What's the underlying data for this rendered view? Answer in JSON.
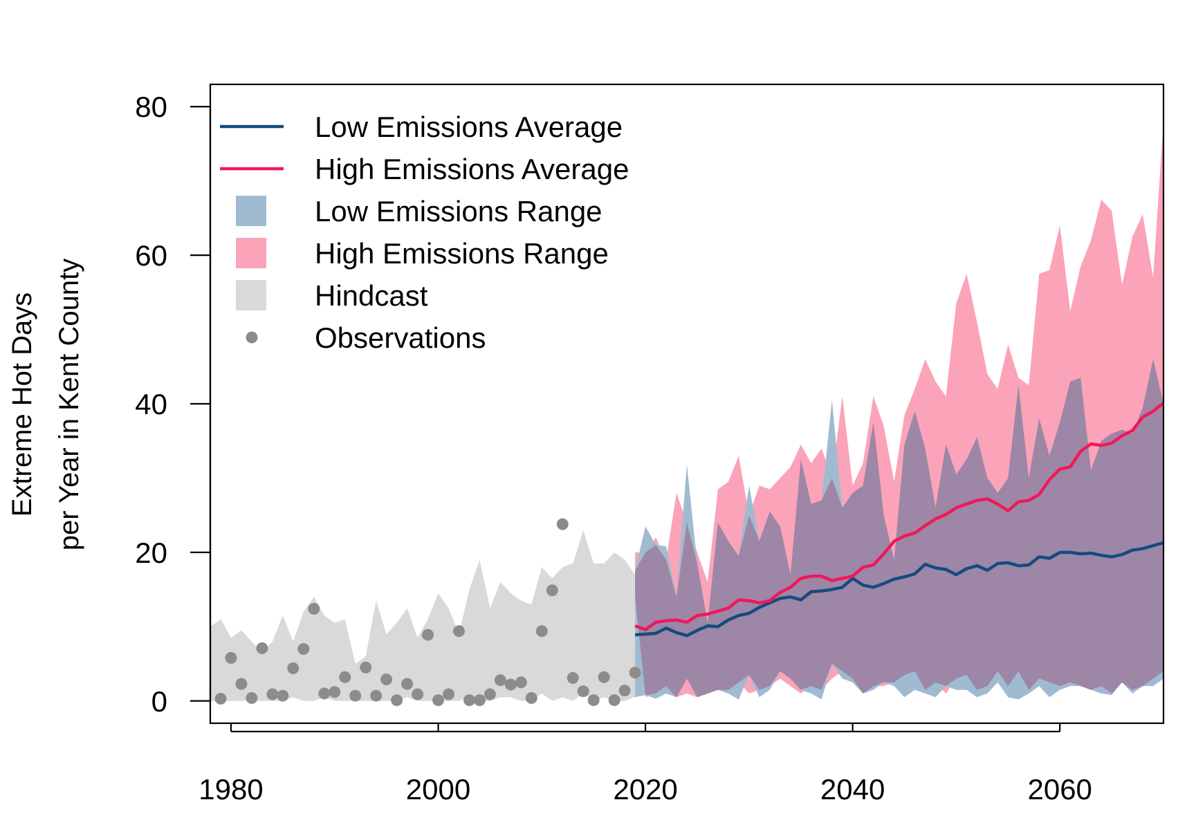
{
  "chart_data": {
    "type": "line",
    "ylabel_line1": "Extreme Hot Days",
    "ylabel_line2": "per Year in Kent County",
    "xlim": [
      1978,
      2070
    ],
    "ylim": [
      -3,
      83
    ],
    "x_ticks": [
      1980,
      2000,
      2020,
      2040,
      2060
    ],
    "x_tick_labels": [
      "1980",
      "2000",
      "2020",
      "2040",
      "2060"
    ],
    "y_ticks": [
      0,
      20,
      40,
      60,
      80
    ],
    "y_tick_labels": [
      "0",
      "20",
      "40",
      "60",
      "80"
    ],
    "legend": {
      "position": "top-left",
      "entries": [
        {
          "label": "Low Emissions Average",
          "kind": "line",
          "color": "#154b7e"
        },
        {
          "label": "High Emissions Average",
          "kind": "line",
          "color": "#f0185a"
        },
        {
          "label": "Low Emissions Range",
          "kind": "box",
          "color": "#a0bbd1"
        },
        {
          "label": "High Emissions Range",
          "kind": "box",
          "color": "#fba3b8"
        },
        {
          "label": "Hindcast",
          "kind": "box",
          "color": "#d9d9d9"
        },
        {
          "label": "Observations",
          "kind": "point",
          "color": "#8c8c8c"
        }
      ]
    },
    "colors": {
      "low_line": "#154b7e",
      "high_line": "#f0185a",
      "low_range": "#a0bbd1",
      "high_range": "#fba3b8",
      "overlap": "#9d86a6",
      "hindcast": "#d9d9d9",
      "observations": "#8c8c8c"
    },
    "hindcast": {
      "x": [
        1978,
        1979,
        1980,
        1981,
        1982,
        1983,
        1984,
        1985,
        1986,
        1987,
        1988,
        1989,
        1990,
        1991,
        1992,
        1993,
        1994,
        1995,
        1996,
        1997,
        1998,
        1999,
        2000,
        2001,
        2002,
        2003,
        2004,
        2005,
        2006,
        2007,
        2008,
        2009,
        2010,
        2011,
        2012,
        2013,
        2014,
        2015,
        2016,
        2017,
        2018,
        2019
      ],
      "upper": [
        10,
        11,
        8.5,
        9.5,
        8,
        6.5,
        8,
        11.5,
        8,
        12,
        14,
        11.5,
        10.5,
        11,
        5,
        6,
        13.5,
        9,
        10.5,
        12.5,
        8.5,
        11,
        14.5,
        12.5,
        9,
        15,
        19,
        12.5,
        16,
        14.5,
        13.5,
        13,
        18,
        16.5,
        18,
        18.5,
        23,
        18.5,
        18.5,
        20,
        19,
        17
      ],
      "lower": [
        0,
        0,
        0,
        0,
        0,
        0,
        0,
        0,
        0.5,
        0,
        0,
        0.5,
        0,
        0,
        0,
        0,
        0,
        0,
        0,
        0.5,
        0,
        0,
        0,
        0,
        0,
        0.5,
        0,
        0,
        0.5,
        0.5,
        0,
        0,
        1,
        0,
        0.5,
        0,
        1,
        0,
        0.5,
        0,
        0,
        0.5
      ]
    },
    "observations": {
      "x": [
        1979,
        1980,
        1981,
        1982,
        1983,
        1984,
        1985,
        1986,
        1987,
        1988,
        1989,
        1990,
        1991,
        1992,
        1993,
        1994,
        1995,
        1996,
        1997,
        1998,
        1999,
        2000,
        2001,
        2002,
        2003,
        2004,
        2005,
        2006,
        2007,
        2008,
        2009,
        2010,
        2011,
        2012,
        2013,
        2014,
        2015,
        2016,
        2017,
        2018,
        2019
      ],
      "y": [
        0.3,
        5.8,
        2.3,
        0.4,
        7.1,
        0.9,
        0.7,
        4.4,
        7.0,
        12.4,
        1.0,
        1.2,
        3.2,
        0.7,
        4.5,
        0.7,
        2.9,
        0.1,
        2.3,
        0.9,
        8.9,
        0.1,
        0.9,
        9.4,
        0.1,
        0.1,
        0.9,
        2.8,
        2.2,
        2.5,
        0.4,
        9.4,
        14.9,
        23.8,
        3.1,
        1.3,
        0.1,
        3.2,
        0.1,
        1.4,
        3.8
      ]
    },
    "projection_x": [
      2019,
      2020,
      2021,
      2022,
      2023,
      2024,
      2025,
      2026,
      2027,
      2028,
      2029,
      2030,
      2031,
      2032,
      2033,
      2034,
      2035,
      2036,
      2037,
      2038,
      2039,
      2040,
      2041,
      2042,
      2043,
      2044,
      2045,
      2046,
      2047,
      2048,
      2049,
      2050,
      2051,
      2052,
      2053,
      2054,
      2055,
      2056,
      2057,
      2058,
      2059,
      2060,
      2061,
      2062,
      2063,
      2064,
      2065,
      2066,
      2067,
      2068,
      2069,
      2070
    ],
    "series": [
      {
        "name": "Low Emissions Average",
        "values": [
          8.9,
          9.0,
          9.1,
          9.8,
          9.2,
          8.8,
          9.5,
          10.1,
          10.0,
          10.9,
          11.5,
          11.8,
          12.6,
          13.2,
          13.8,
          14.0,
          13.6,
          14.7,
          14.8,
          15.0,
          15.3,
          16.5,
          15.6,
          15.3,
          15.8,
          16.4,
          16.7,
          17.1,
          18.4,
          17.9,
          17.7,
          17.0,
          17.8,
          18.2,
          17.6,
          18.5,
          18.6,
          18.2,
          18.3,
          19.4,
          19.2,
          20.0,
          20.0,
          19.8,
          19.9,
          19.6,
          19.4,
          19.7,
          20.3,
          20.5,
          20.9,
          21.3
        ]
      },
      {
        "name": "High Emissions Average",
        "values": [
          10.1,
          9.6,
          10.6,
          10.8,
          10.9,
          10.6,
          11.5,
          11.7,
          12.1,
          12.5,
          13.6,
          13.5,
          13.2,
          13.5,
          14.6,
          15.3,
          16.5,
          16.8,
          16.8,
          16.2,
          16.5,
          16.8,
          18.0,
          18.3,
          19.8,
          21.5,
          22.2,
          22.6,
          23.6,
          24.5,
          25.1,
          26.0,
          26.5,
          27.0,
          27.2,
          26.5,
          25.6,
          26.8,
          27.0,
          27.8,
          29.8,
          31.2,
          31.5,
          33.6,
          34.6,
          34.4,
          34.7,
          35.7,
          36.4,
          38.2,
          39.0,
          40.1
        ]
      }
    ],
    "ranges": {
      "low_upper": [
        17.5,
        23.5,
        21.0,
        20.8,
        14.0,
        31.8,
        18.5,
        10.5,
        24.0,
        21.5,
        19.5,
        29.0,
        21.5,
        25.5,
        23.5,
        17.0,
        32.5,
        26.5,
        27.0,
        40.5,
        26.0,
        28.0,
        29.0,
        37.5,
        25.0,
        19.0,
        34.5,
        39.0,
        34.0,
        26.0,
        34.5,
        30.5,
        32.5,
        35.5,
        30.0,
        28.0,
        30.0,
        42.5,
        30.0,
        38.0,
        33.0,
        37.5,
        43.0,
        43.5,
        31.0,
        35.0,
        36.0,
        36.5,
        36.0,
        39.5,
        46.0,
        40.0
      ],
      "low_lower": [
        0.5,
        0.8,
        0.3,
        1.0,
        0.5,
        3.0,
        0.5,
        1.0,
        1.5,
        1.0,
        0.2,
        3.5,
        0.5,
        1.5,
        4.0,
        3.0,
        1.5,
        1.0,
        0.2,
        5.0,
        3.0,
        2.5,
        1.0,
        1.5,
        2.5,
        2.0,
        0.5,
        1.5,
        1.0,
        0.5,
        2.0,
        1.5,
        1.5,
        0.5,
        1.0,
        2.5,
        0.5,
        0.2,
        1.0,
        2.0,
        0.5,
        1.5,
        2.0,
        2.0,
        1.5,
        1.0,
        0.8,
        2.5,
        1.0,
        2.0,
        2.0,
        3.0
      ],
      "high_upper": [
        20.0,
        20.0,
        22.0,
        19.0,
        28.0,
        24.0,
        20.0,
        16.0,
        28.5,
        29.5,
        33.0,
        25.0,
        29.0,
        28.5,
        30.0,
        31.5,
        34.5,
        32.0,
        34.0,
        30.0,
        41.0,
        29.0,
        32.0,
        41.0,
        37.0,
        29.5,
        38.5,
        42.0,
        46.0,
        43.0,
        41.0,
        53.5,
        57.5,
        51.0,
        44.0,
        42.0,
        48.0,
        43.5,
        42.5,
        57.5,
        58.0,
        64.0,
        52.5,
        58.5,
        62.0,
        67.5,
        66.0,
        56.0,
        62.5,
        65.5,
        57.0,
        78.0
      ],
      "high_lower": [
        14.0,
        0.5,
        1.0,
        2.0,
        0.5,
        1.0,
        0.5,
        1.0,
        1.5,
        1.5,
        2.5,
        1.0,
        1.5,
        2.0,
        3.0,
        2.0,
        1.0,
        2.0,
        1.5,
        3.0,
        4.0,
        3.0,
        1.0,
        2.0,
        2.0,
        2.5,
        3.5,
        4.0,
        1.5,
        2.5,
        1.0,
        3.0,
        3.5,
        1.5,
        2.0,
        4.0,
        2.0,
        4.0,
        1.5,
        3.0,
        2.5,
        2.0,
        2.5,
        2.0,
        1.5,
        2.0,
        1.0,
        2.5,
        1.5,
        2.0,
        3.0,
        4.0
      ],
      "overlap_upper": [
        17.5,
        20.0,
        21.0,
        19.0,
        14.0,
        24.0,
        18.5,
        10.5,
        24.0,
        21.5,
        19.5,
        25.0,
        21.5,
        25.5,
        23.5,
        17.0,
        32.5,
        26.5,
        27.0,
        30.0,
        26.0,
        28.0,
        29.0,
        37.5,
        25.0,
        19.0,
        34.5,
        39.0,
        34.0,
        26.0,
        34.5,
        30.5,
        32.5,
        35.5,
        30.0,
        28.0,
        30.0,
        42.5,
        30.0,
        38.0,
        33.0,
        37.5,
        43.0,
        43.5,
        31.0,
        35.0,
        36.0,
        36.5,
        36.0,
        39.5,
        46.0,
        40.0
      ],
      "overlap_lower": [
        14.0,
        0.8,
        1.0,
        2.0,
        0.5,
        3.0,
        0.5,
        1.0,
        1.5,
        1.5,
        2.5,
        3.5,
        1.5,
        2.0,
        4.0,
        3.0,
        1.5,
        2.0,
        1.5,
        5.0,
        4.0,
        3.0,
        1.0,
        2.0,
        2.5,
        2.5,
        3.5,
        4.0,
        1.5,
        2.5,
        2.0,
        3.0,
        3.5,
        1.5,
        2.0,
        4.0,
        2.0,
        4.0,
        1.5,
        3.0,
        2.5,
        2.0,
        2.5,
        2.0,
        1.5,
        2.0,
        1.0,
        2.5,
        1.5,
        2.0,
        3.0,
        4.0
      ]
    }
  }
}
